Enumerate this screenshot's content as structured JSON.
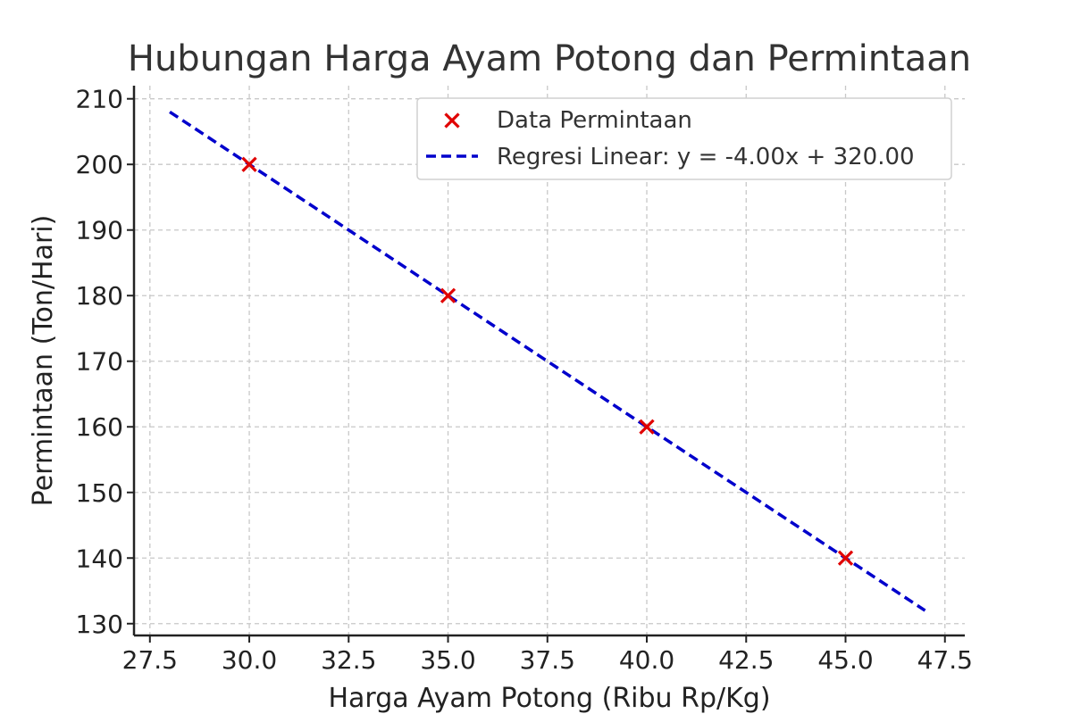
{
  "chart_data": {
    "type": "scatter",
    "title": "Hubungan Harga Ayam Potong dan Permintaan",
    "xlabel": "Harga Ayam Potong (Ribu Rp/Kg)",
    "ylabel": "Permintaan (Ton/Hari)",
    "xlim": [
      27.1,
      48.0
    ],
    "ylim": [
      128.2,
      212.0
    ],
    "xticks": [
      27.5,
      30.0,
      32.5,
      35.0,
      37.5,
      40.0,
      42.5,
      45.0,
      47.5
    ],
    "xtick_labels": [
      "27.5",
      "30.0",
      "32.5",
      "35.0",
      "37.5",
      "40.0",
      "42.5",
      "45.0",
      "47.5"
    ],
    "yticks": [
      130,
      140,
      150,
      160,
      170,
      180,
      190,
      200,
      210
    ],
    "ytick_labels": [
      "130",
      "140",
      "150",
      "160",
      "170",
      "180",
      "190",
      "200",
      "210"
    ],
    "grid": true,
    "legend_position": "top-right",
    "series": [
      {
        "name": "Data Permintaan",
        "kind": "scatter",
        "marker": "x",
        "color": "#e00000",
        "x": [
          30,
          35,
          40,
          45
        ],
        "y": [
          200,
          180,
          160,
          140
        ]
      },
      {
        "name": "Regresi Linear: y = -4.00x + 320.00",
        "kind": "line",
        "style": "dashed",
        "color": "#0000cc",
        "x": [
          28,
          47
        ],
        "y": [
          208,
          132
        ]
      }
    ]
  }
}
